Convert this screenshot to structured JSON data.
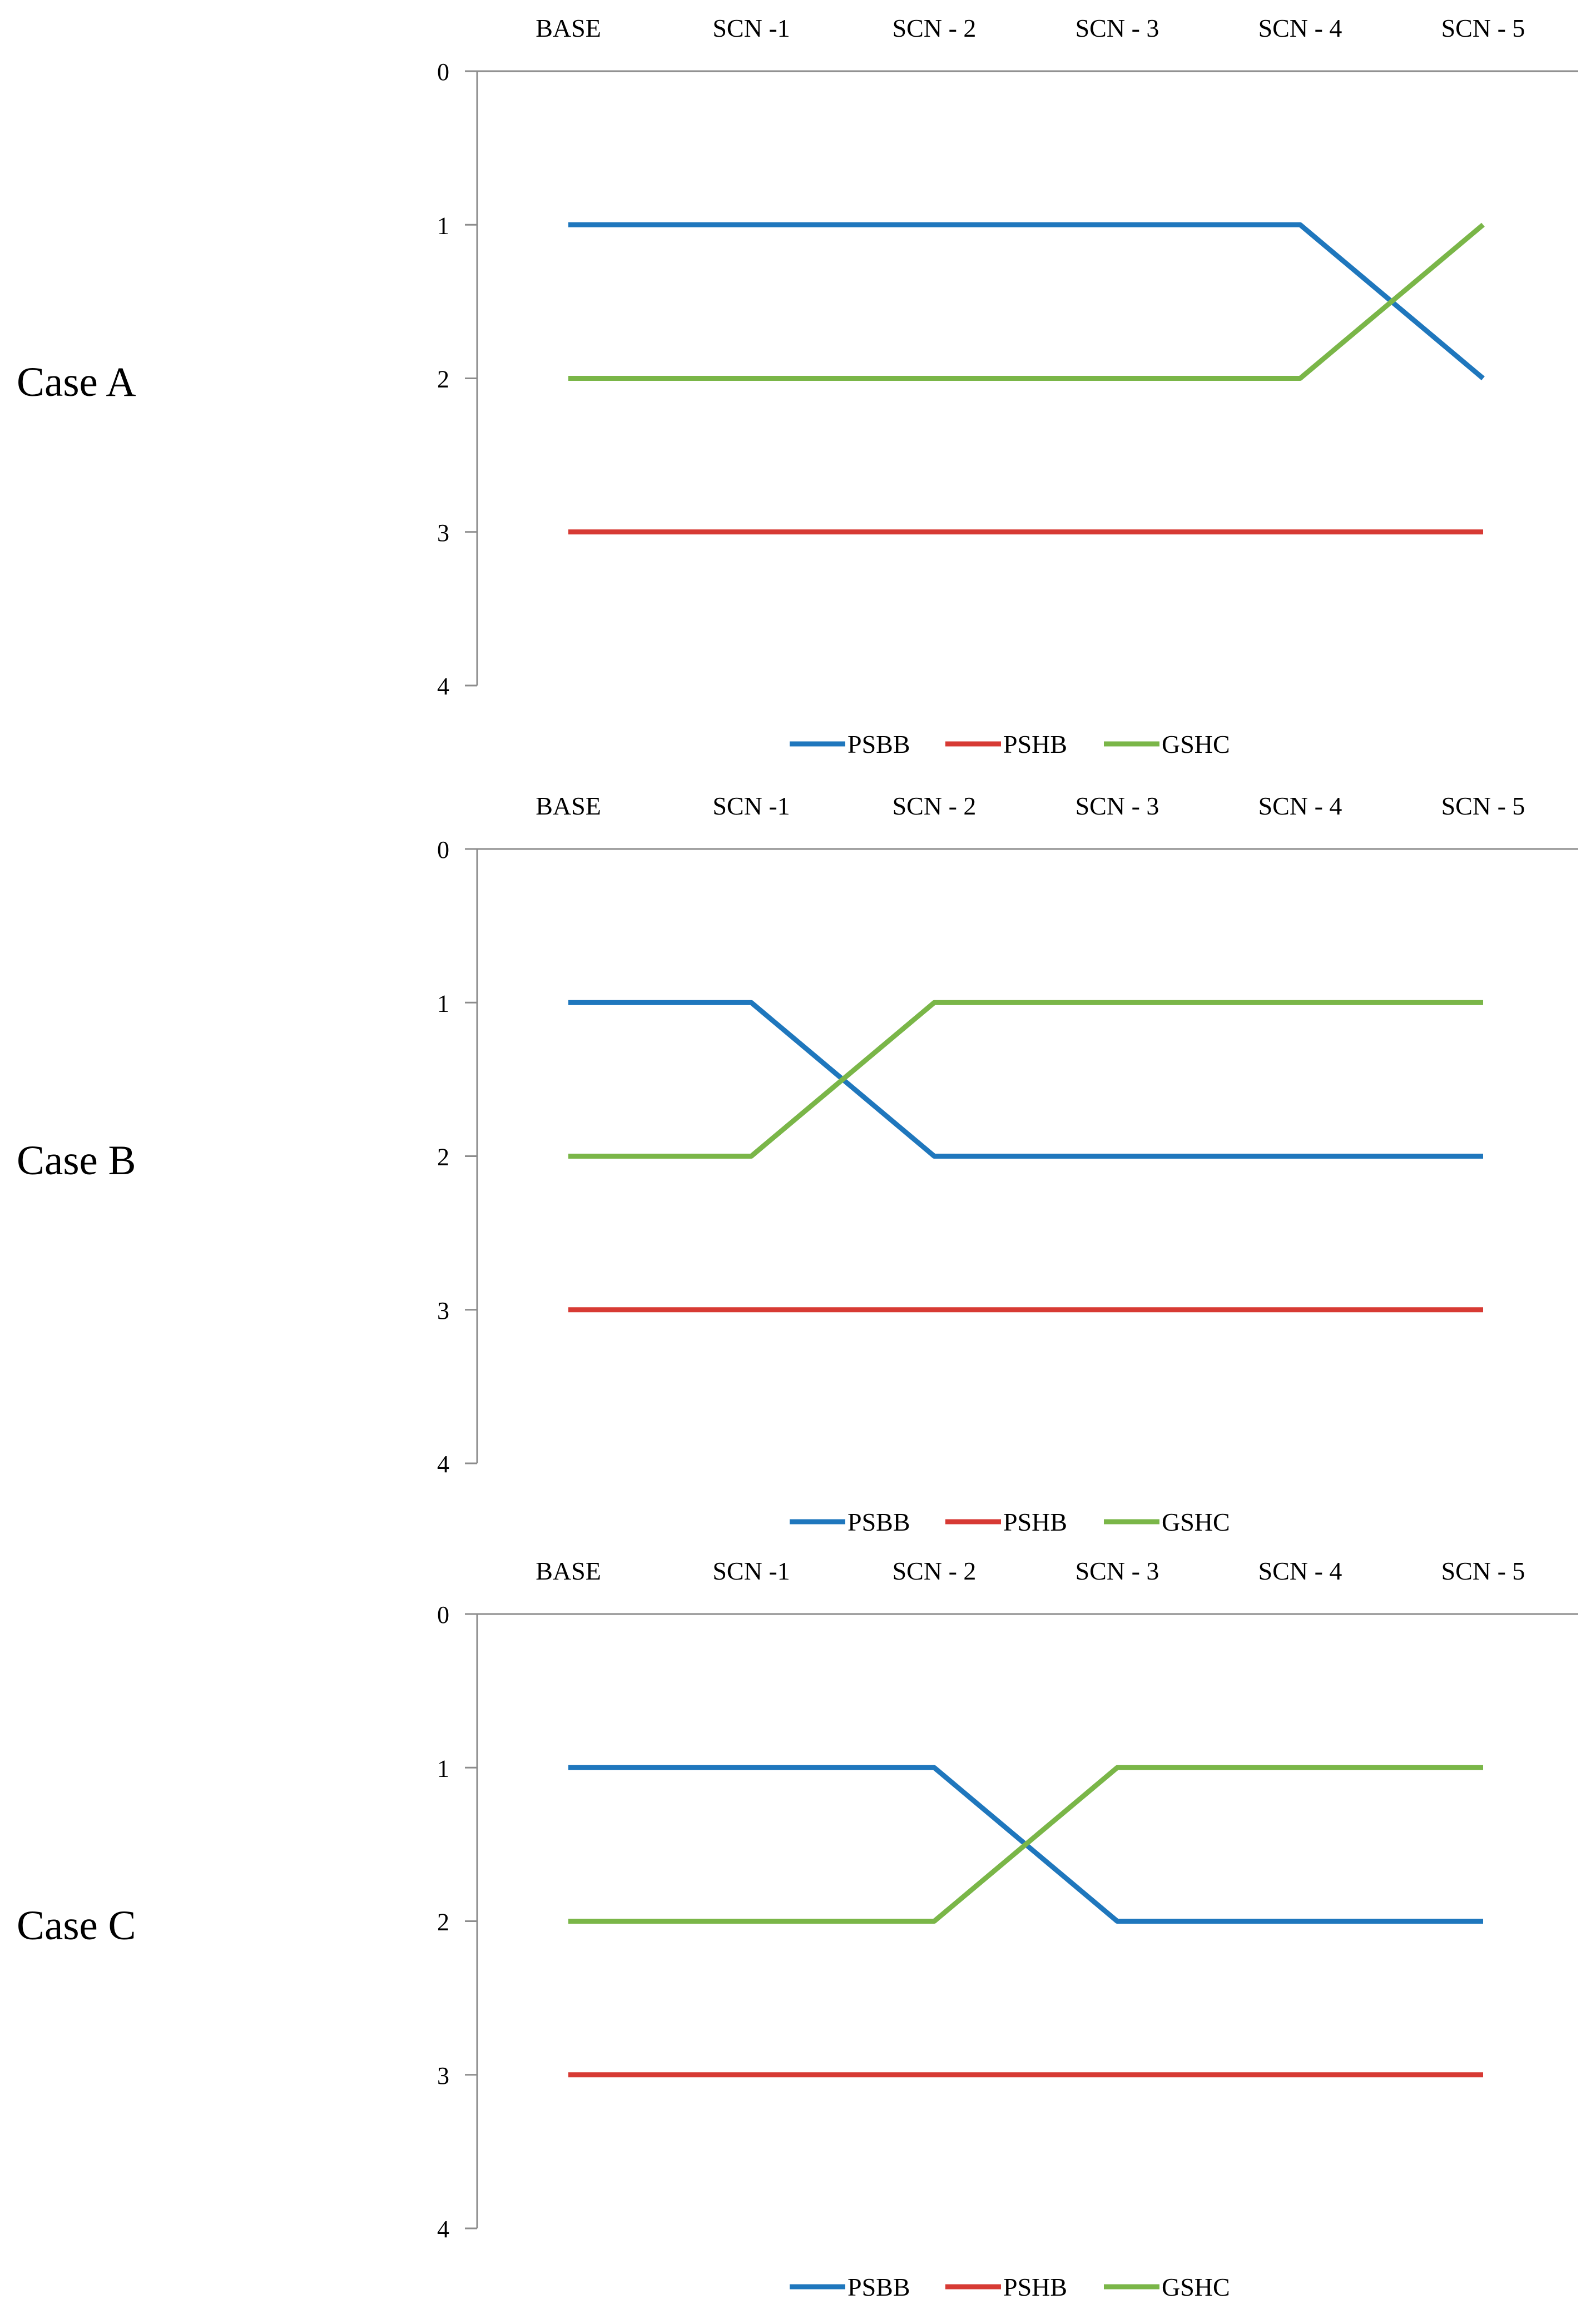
{
  "colors": {
    "PSBB": "#1f77bd",
    "PSHB": "#d73a34",
    "GSHC": "#7ab648",
    "axis": "#8c8c8c"
  },
  "chart_data": [
    {
      "type": "line",
      "case_label": "Case A",
      "categories": [
        "BASE",
        "SCN -1",
        "SCN - 2",
        "SCN - 3",
        "SCN - 4",
        "SCN - 5"
      ],
      "y_ticks": [
        "0",
        "1",
        "2",
        "3",
        "4"
      ],
      "ylim": [
        0,
        4
      ],
      "y_reversed": true,
      "x_axis_position": "top",
      "legend_position": "bottom-center",
      "series": [
        {
          "name": "PSBB",
          "values": [
            1,
            1,
            1,
            1,
            1,
            2
          ]
        },
        {
          "name": "PSHB",
          "values": [
            3,
            3,
            3,
            3,
            3,
            3
          ]
        },
        {
          "name": "GSHC",
          "values": [
            2,
            2,
            2,
            2,
            2,
            1
          ]
        }
      ]
    },
    {
      "type": "line",
      "case_label": "Case B",
      "categories": [
        "BASE",
        "SCN -1",
        "SCN - 2",
        "SCN - 3",
        "SCN - 4",
        "SCN - 5"
      ],
      "y_ticks": [
        "0",
        "1",
        "2",
        "3",
        "4"
      ],
      "ylim": [
        0,
        4
      ],
      "y_reversed": true,
      "x_axis_position": "top",
      "legend_position": "bottom-center",
      "series": [
        {
          "name": "PSBB",
          "values": [
            1,
            1,
            2,
            2,
            2,
            2
          ]
        },
        {
          "name": "PSHB",
          "values": [
            3,
            3,
            3,
            3,
            3,
            3
          ]
        },
        {
          "name": "GSHC",
          "values": [
            2,
            2,
            1,
            1,
            1,
            1
          ]
        }
      ]
    },
    {
      "type": "line",
      "case_label": "Case C",
      "categories": [
        "BASE",
        "SCN -1",
        "SCN - 2",
        "SCN - 3",
        "SCN - 4",
        "SCN - 5"
      ],
      "y_ticks": [
        "0",
        "1",
        "2",
        "3",
        "4"
      ],
      "ylim": [
        0,
        4
      ],
      "y_reversed": true,
      "x_axis_position": "top",
      "legend_position": "bottom-center",
      "series": [
        {
          "name": "PSBB",
          "values": [
            1,
            1,
            1,
            2,
            2,
            2
          ]
        },
        {
          "name": "PSHB",
          "values": [
            3,
            3,
            3,
            3,
            3,
            3
          ]
        },
        {
          "name": "GSHC",
          "values": [
            2,
            2,
            2,
            1,
            1,
            1
          ]
        }
      ]
    }
  ]
}
